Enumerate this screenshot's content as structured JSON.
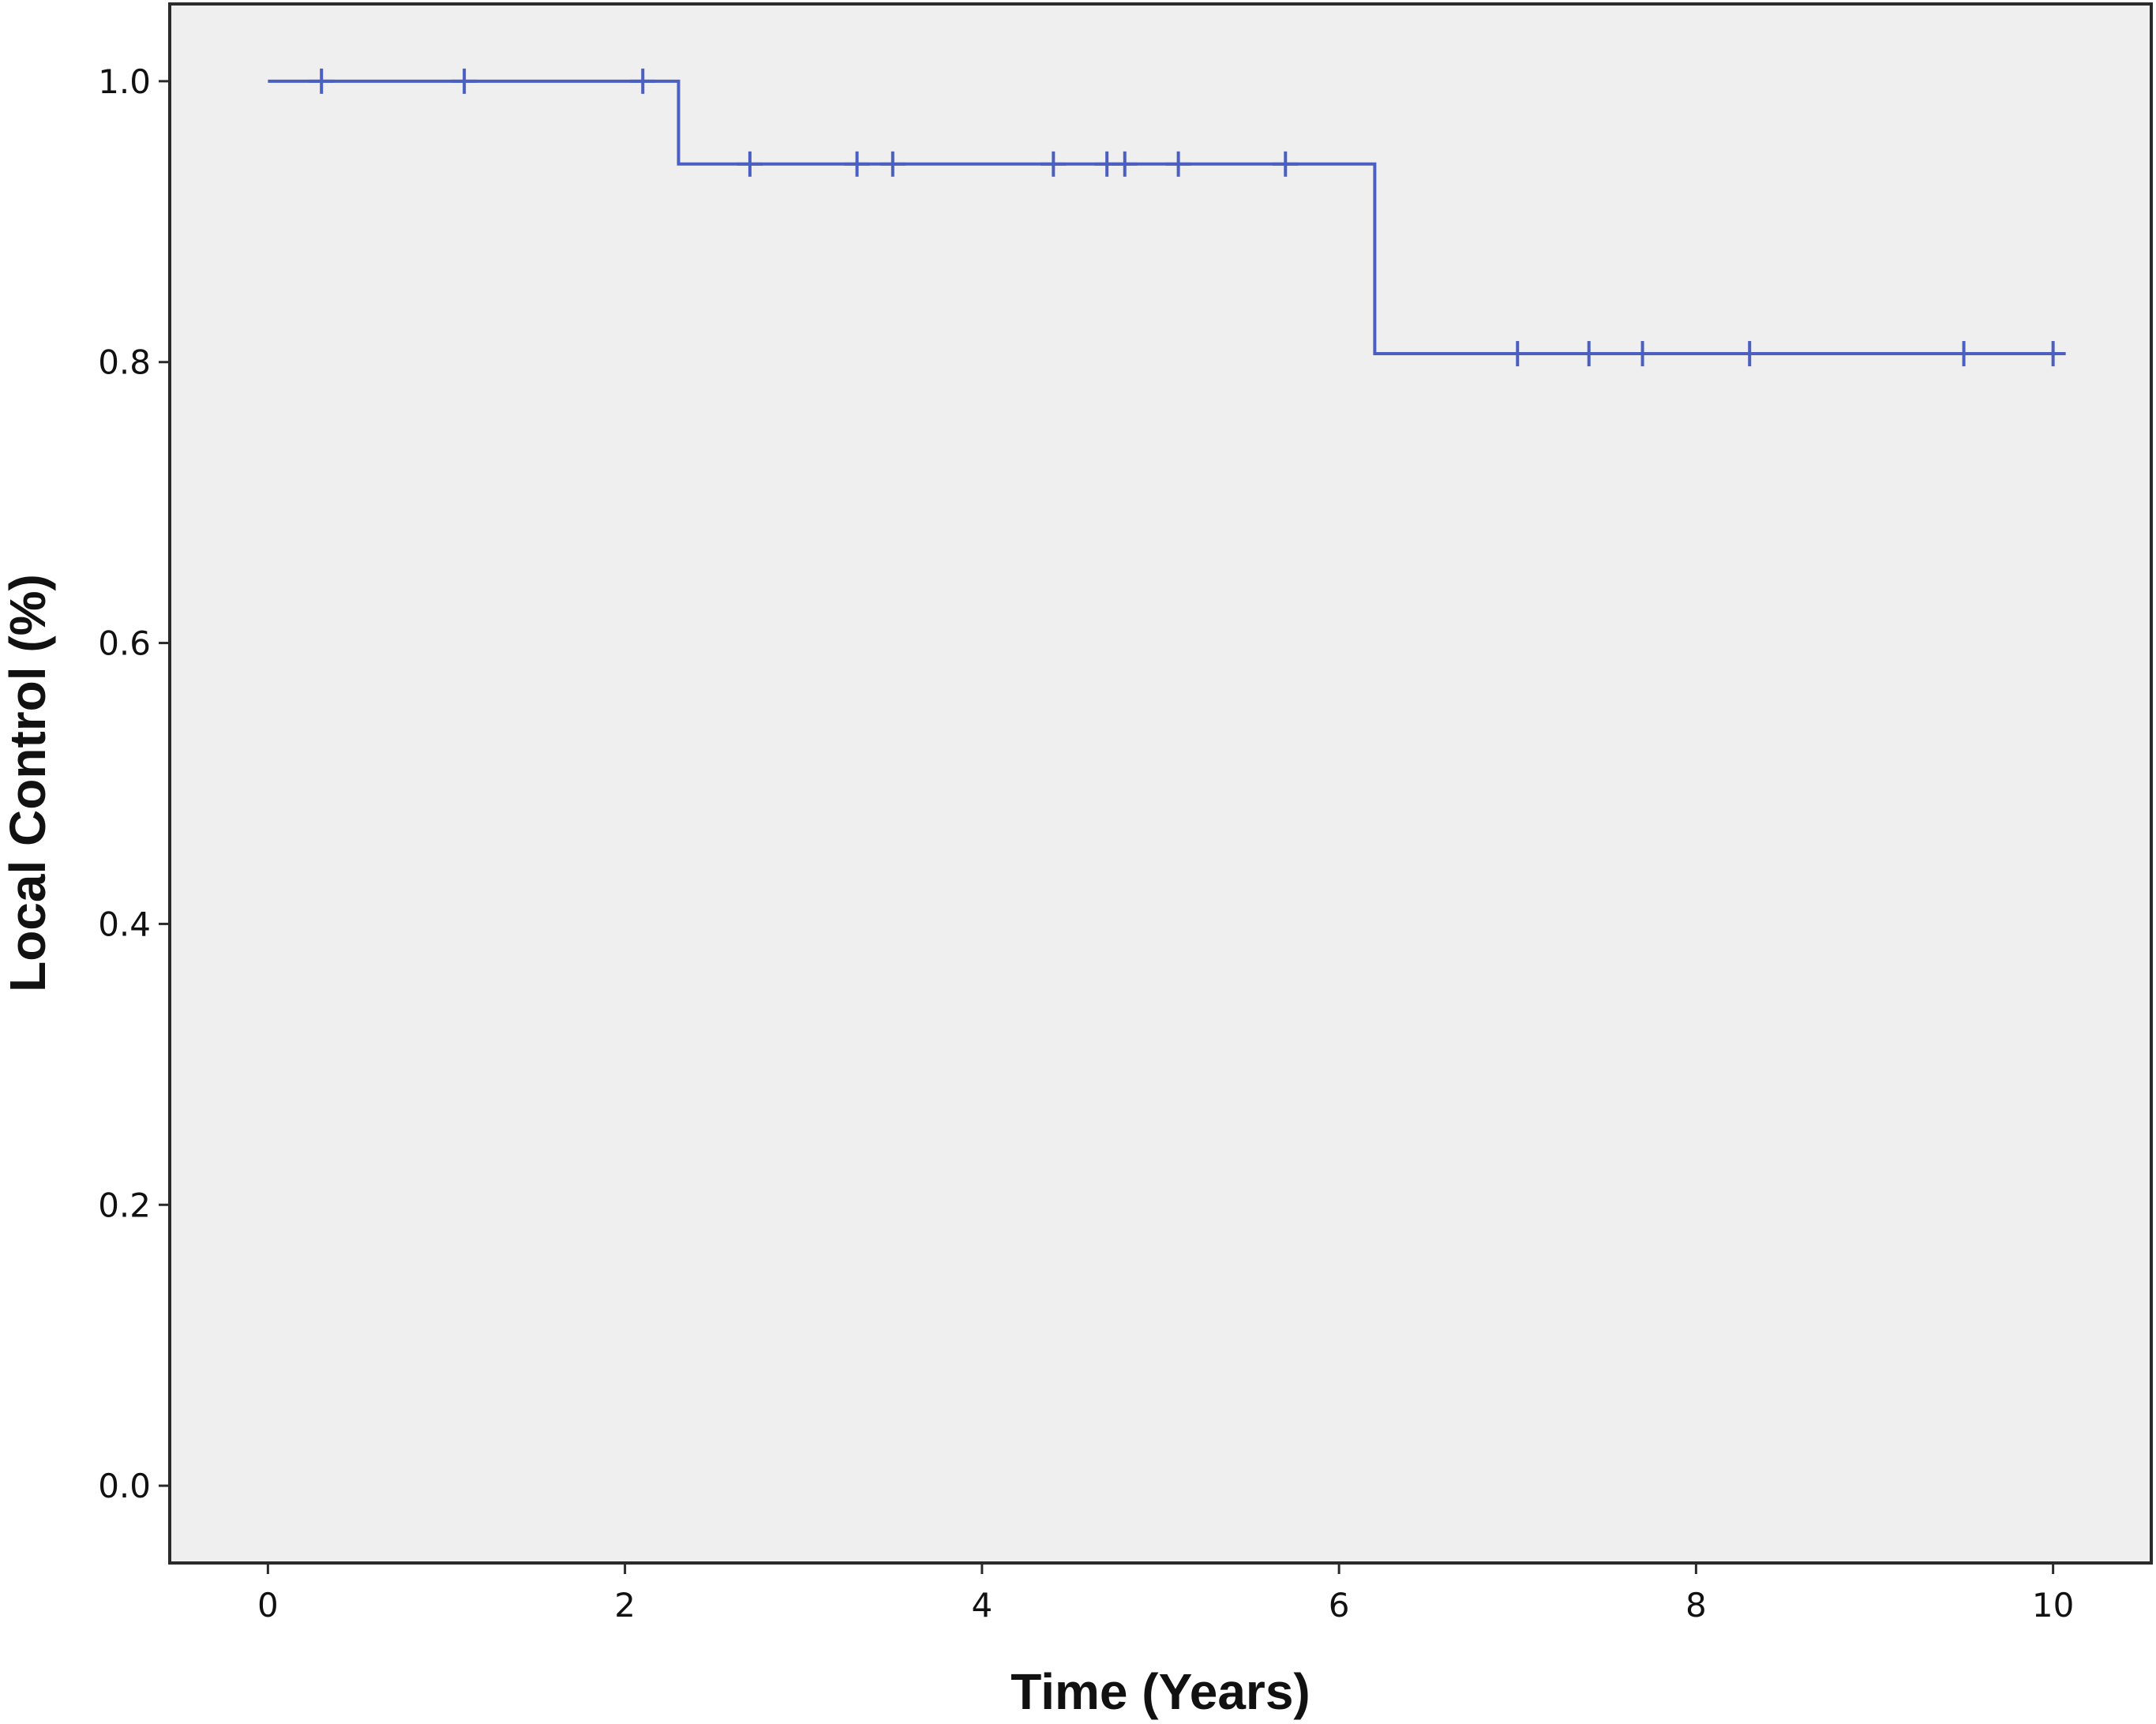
{
  "chart_data": {
    "type": "line",
    "title": "",
    "xlabel": "Time (Years)",
    "ylabel": "Local Control (%)",
    "xlim": [
      -0.55,
      10.55
    ],
    "ylim": [
      -0.055,
      1.055
    ],
    "x_ticks": [
      0,
      2,
      4,
      6,
      8,
      10
    ],
    "x_tick_labels": [
      "0",
      "2",
      "4",
      "6",
      "8",
      "10"
    ],
    "y_ticks": [
      0.0,
      0.2,
      0.4,
      0.6,
      0.8,
      1.0
    ],
    "y_tick_labels": [
      "0.0",
      "0.2",
      "0.4",
      "0.6",
      "0.8",
      "1.0"
    ],
    "grid": false,
    "legend": false,
    "series": [
      {
        "step": true,
        "x": [
          0,
          2.3,
          2.3,
          6.2,
          6.2,
          10.05
        ],
        "y": [
          1.0,
          1.0,
          0.941,
          0.941,
          0.806,
          0.806
        ],
        "censored": {
          "x": [
            0.3,
            1.1,
            2.1,
            2.7,
            3.3,
            3.5,
            4.4,
            4.7,
            4.8,
            5.1,
            5.7,
            7.0,
            7.4,
            7.7,
            8.3,
            9.5,
            10.0
          ],
          "y": [
            1.0,
            1.0,
            1.0,
            0.941,
            0.941,
            0.941,
            0.941,
            0.941,
            0.941,
            0.941,
            0.941,
            0.806,
            0.806,
            0.806,
            0.806,
            0.806,
            0.806
          ]
        }
      }
    ],
    "colors": {
      "line": "#4a5fc1",
      "plot_background": "#efefef",
      "frame": "#2b2b2b",
      "text": "#111111"
    }
  }
}
